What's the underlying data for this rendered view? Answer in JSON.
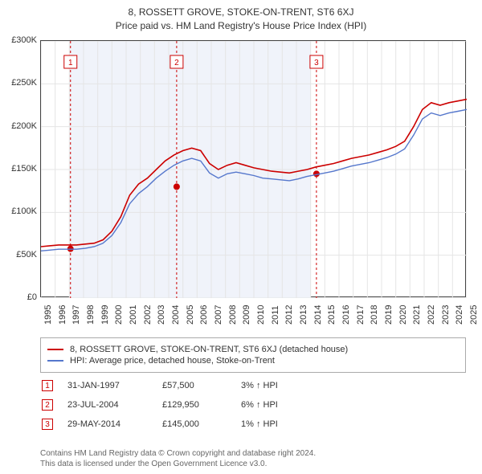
{
  "title": "8, ROSSETT GROVE, STOKE-ON-TRENT, ST6 6XJ",
  "subtitle": "Price paid vs. HM Land Registry's House Price Index (HPI)",
  "colors": {
    "series_property": "#cc0000",
    "series_hpi": "#5577cc",
    "grid": "#e5e5e5",
    "marker_dashed": "#cc0000",
    "band_fill": "#f0f3fa",
    "axis": "#444444",
    "text": "#333333",
    "attribution": "#666666"
  },
  "chart": {
    "type": "line",
    "x_start_year": 1995,
    "x_end_year": 2025,
    "ylim": [
      0,
      300000
    ],
    "xtick_years": [
      1995,
      1996,
      1997,
      1998,
      1999,
      2000,
      2001,
      2002,
      2003,
      2004,
      2005,
      2006,
      2007,
      2008,
      2009,
      2010,
      2011,
      2012,
      2013,
      2014,
      2015,
      2016,
      2017,
      2018,
      2019,
      2020,
      2021,
      2022,
      2023,
      2024,
      2025
    ],
    "yticks": [
      {
        "v": 0,
        "label": "£0"
      },
      {
        "v": 50000,
        "label": "£50K"
      },
      {
        "v": 100000,
        "label": "£100K"
      },
      {
        "v": 150000,
        "label": "£150K"
      },
      {
        "v": 200000,
        "label": "£200K"
      },
      {
        "v": 250000,
        "label": "£250K"
      },
      {
        "v": 300000,
        "label": "£300K"
      }
    ],
    "shaded_bands": [
      [
        1997,
        2004
      ],
      [
        2004,
        2014
      ]
    ],
    "series_property_values": [
      60,
      61,
      62,
      62,
      62,
      63,
      64,
      68,
      78,
      95,
      120,
      133,
      140,
      150,
      160,
      167,
      172,
      175,
      172,
      157,
      150,
      155,
      158,
      155,
      152,
      150,
      148,
      147,
      146,
      148,
      150,
      153,
      155,
      157,
      160,
      163,
      165,
      167,
      170,
      173,
      177,
      183,
      200,
      220,
      228,
      225,
      228,
      230,
      232
    ],
    "series_hpi_values": [
      55,
      56,
      57,
      57,
      57,
      58,
      60,
      64,
      73,
      88,
      110,
      122,
      130,
      140,
      148,
      155,
      160,
      163,
      160,
      146,
      140,
      145,
      147,
      145,
      143,
      140,
      139,
      138,
      137,
      139,
      142,
      144,
      146,
      148,
      151,
      154,
      156,
      158,
      161,
      164,
      168,
      174,
      190,
      209,
      216,
      213,
      216,
      218,
      220
    ],
    "series_property_line_width": 1.6,
    "series_hpi_line_width": 1.4
  },
  "legend": {
    "items": [
      {
        "color": "#cc0000",
        "label": "8, ROSSETT GROVE, STOKE-ON-TRENT, ST6 6XJ (detached house)"
      },
      {
        "color": "#5577cc",
        "label": "HPI: Average price, detached house, Stoke-on-Trent"
      }
    ]
  },
  "events": [
    {
      "n": "1",
      "date": "31-JAN-1997",
      "year_frac": 1997.08,
      "price_num": 57500,
      "price": "£57,500",
      "pct": "3% ↑ HPI"
    },
    {
      "n": "2",
      "date": "23-JUL-2004",
      "year_frac": 2004.56,
      "price_num": 129950,
      "price": "£129,950",
      "pct": "6% ↑ HPI"
    },
    {
      "n": "3",
      "date": "29-MAY-2014",
      "year_frac": 2014.41,
      "price_num": 145000,
      "price": "£145,000",
      "pct": "1% ↑ HPI"
    }
  ],
  "attribution_line1": "Contains HM Land Registry data © Crown copyright and database right 2024.",
  "attribution_line2": "This data is licensed under the Open Government Licence v3.0."
}
